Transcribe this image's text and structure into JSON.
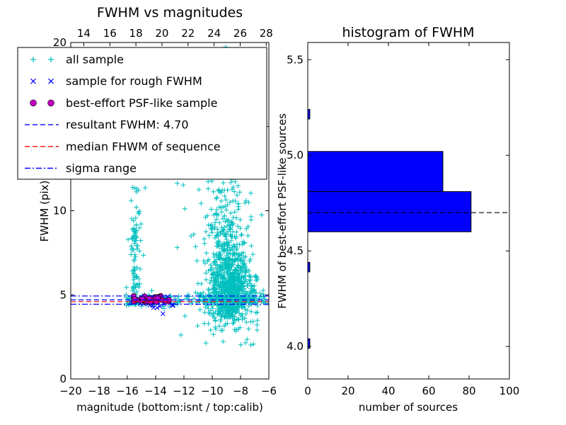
{
  "figure": {
    "background": "#ffffff"
  },
  "chart_data": [
    {
      "type": "scatter",
      "title": "FWHM vs magnitudes",
      "xlabel": "magnitude (bottom:isnt / top:calib)",
      "ylabel": "FWHM (pix)",
      "xlim": [
        -20,
        -6
      ],
      "ylim": [
        0,
        20
      ],
      "xticks": [
        -20,
        -18,
        -16,
        -14,
        -12,
        -10,
        -8,
        -6
      ],
      "yticks": [
        0,
        5,
        10,
        15,
        20
      ],
      "top_xlim": [
        13.0,
        28.2
      ],
      "top_xticks": [
        14,
        16,
        18,
        20,
        22,
        24,
        26,
        28
      ],
      "series": [
        {
          "name": "all sample",
          "marker": "plus",
          "color": "#00bfbf",
          "clusters": [
            {
              "n": 650,
              "cx": -8.7,
              "sx": 0.85,
              "cy": 5.1,
              "sy": 1.0,
              "ymin": 2.8
            },
            {
              "n": 300,
              "cx": -8.9,
              "sx": 0.75,
              "cy": 7.6,
              "sy": 1.8
            },
            {
              "n": 110,
              "cx": -9.2,
              "sx": 0.85,
              "cy": 13.0,
              "sy": 3.2
            },
            {
              "n": 100,
              "cx": -15.45,
              "sx": 0.2,
              "cy": 7.0,
              "sy": 2.4,
              "ymin": 4.4
            },
            {
              "n": 14,
              "cx": -15.4,
              "sx": 0.3,
              "cy": 15.5,
              "sy": 2.5
            },
            {
              "n": 170,
              "x0": -16.1,
              "x1": -6.3,
              "cy": 4.68,
              "sy": 0.22
            },
            {
              "n": 55,
              "x0": -12.6,
              "x1": -6.2,
              "y0": 2.6,
              "y1": 19.8
            },
            {
              "n": 7,
              "x0": -11.0,
              "x1": -6.4,
              "y0": 1.6,
              "y1": 2.6
            }
          ]
        },
        {
          "name": "sample for rough FWHM",
          "marker": "cross",
          "color": "#0000ff",
          "clusters": [
            {
              "n": 55,
              "cx": -14.3,
              "sx": 0.75,
              "cy": 4.62,
              "sy": 0.16,
              "xmin": -15.85,
              "xmax": -12.75
            },
            {
              "n": 1,
              "cx": -13.5,
              "sx": 0.05,
              "cy": 3.85,
              "sy": 0.05
            }
          ]
        },
        {
          "name": "best-effort PSF-like sample",
          "marker": "circle",
          "color": "#bf00bf",
          "clusters": [
            {
              "n": 48,
              "cx": -14.4,
              "sx": 0.55,
              "cy": 4.72,
              "sy": 0.1,
              "xmin": -15.6,
              "xmax": -13.0
            }
          ]
        }
      ],
      "hlines": [
        {
          "name": "resultant-fwhm-line",
          "y": 4.7,
          "color": "#0000ff",
          "style": "dashed"
        },
        {
          "name": "median-fwhm-line",
          "y": 4.6,
          "color": "#ff0000",
          "style": "dashed"
        },
        {
          "name": "sigma-range-upper-line",
          "y": 4.93,
          "color": "#0000ff",
          "style": "dashdot"
        },
        {
          "name": "sigma-range-lower-line",
          "y": 4.44,
          "color": "#0000ff",
          "style": "dashdot"
        }
      ],
      "legend": [
        {
          "label": "all sample",
          "kind": "marker",
          "marker": "plus",
          "color": "#00bfbf"
        },
        {
          "label": "sample for rough FWHM",
          "kind": "marker",
          "marker": "cross",
          "color": "#0000ff"
        },
        {
          "label": "best-effort PSF-like sample",
          "kind": "marker",
          "marker": "circle",
          "color": "#bf00bf"
        },
        {
          "label": "resultant FWHM: 4.70",
          "kind": "line",
          "style": "dashed",
          "color": "#0000ff"
        },
        {
          "label": "median FHWM of sequence",
          "kind": "line",
          "style": "dashed",
          "color": "#ff0000"
        },
        {
          "label": "sigma range",
          "kind": "line",
          "style": "dashdot",
          "color": "#0000ff"
        }
      ]
    },
    {
      "type": "barh",
      "title": "histogram of FWHM",
      "xlabel": "number of sources",
      "ylabel": "FWHM of best-effort PSF-like sources",
      "xlim": [
        0,
        100
      ],
      "ylim": [
        3.83,
        5.59
      ],
      "xticks": [
        0,
        20,
        40,
        60,
        80,
        100
      ],
      "yticks": [
        4.0,
        4.5,
        5.0,
        5.5
      ],
      "bar_color": "#0000ff",
      "bars": [
        {
          "y0": 3.99,
          "y1": 4.04,
          "count": 1
        },
        {
          "y0": 4.39,
          "y1": 4.44,
          "count": 1
        },
        {
          "y0": 4.6,
          "y1": 4.81,
          "count": 81
        },
        {
          "y0": 4.81,
          "y1": 5.02,
          "count": 67
        },
        {
          "y0": 5.19,
          "y1": 5.24,
          "count": 1
        }
      ],
      "median_line": {
        "y": 4.7,
        "color": "#000000",
        "style": "dashed"
      }
    }
  ]
}
